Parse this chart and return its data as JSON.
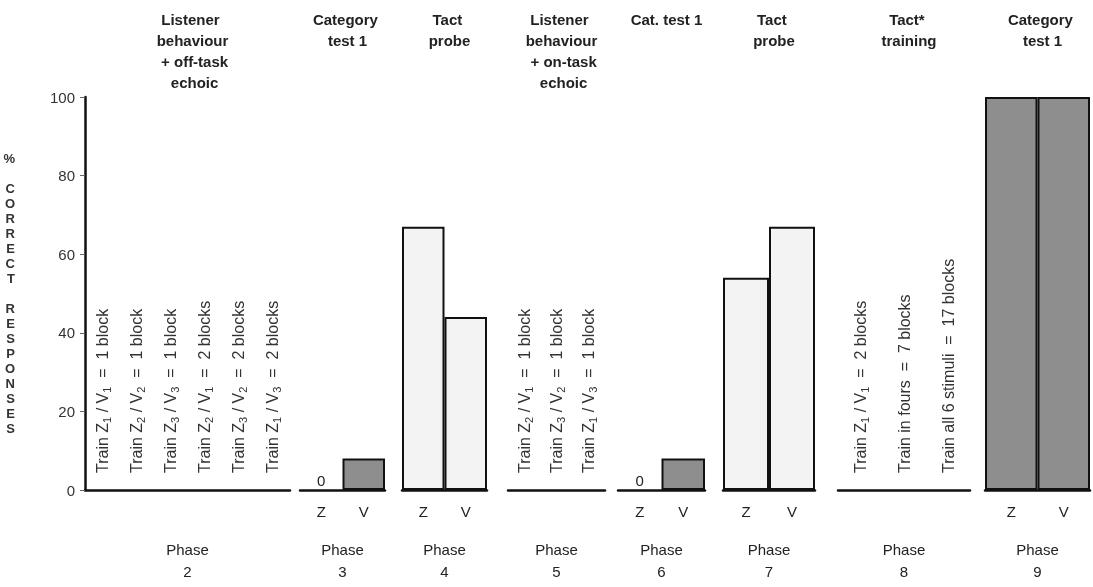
{
  "chart_data": [
    {
      "type": "bar",
      "title": "Listener behaviour + off-task echoic",
      "xlabel": "Phase 2",
      "ylabel": "% CORRECT RESPONSES",
      "ylim": [
        0,
        100
      ],
      "yticks": [
        0,
        20,
        40,
        60,
        80,
        100
      ],
      "tick_labels": "y",
      "categories": [
        null
      ],
      "values": [
        null
      ],
      "annotations": [
        "Train Z$_{1}$ / V$_{1}$  =  1 block",
        "Train Z$_{2}$ / V$_{2}$  =  1 block",
        "Train Z$_{3}$ / V$_{3}$  =  1 block",
        "Train Z$_{2}$ / V$_{1}$  =  2 blocks",
        "Train Z$_{3}$ / V$_{2}$  =  2 blocks",
        "Train Z$_{1}$ / V$_{3}$  =  2 blocks"
      ]
    },
    {
      "type": "bar",
      "title": "Category test 1",
      "xlabel": "Phase 3",
      "ylim": [
        0,
        100
      ],
      "tick_labels": "x",
      "categories": [
        "Z",
        "V"
      ],
      "values": [
        0,
        8
      ],
      "colors": [
        "#8e8e8e",
        "#8e8e8e"
      ],
      "value_labels": [
        "0",
        null
      ]
    },
    {
      "type": "bar",
      "title": "Tact probe",
      "xlabel": "Phase 4",
      "ylim": [
        0,
        100
      ],
      "tick_labels": "x",
      "categories": [
        "Z",
        "V"
      ],
      "values": [
        67,
        44
      ],
      "colors": [
        "#f3f3f3",
        "#f3f3f3"
      ]
    },
    {
      "type": "other",
      "title": "Listener behaviour + on-task echoic",
      "xlabel": "Phase 5",
      "annotations": [
        "Train Z$_{2}$ / V$_{1}$  =  1 block",
        "Train Z$_{3}$ / V$_{2}$  =  1 block",
        "Train Z$_{1}$ / V$_{3}$  =  1 block"
      ]
    },
    {
      "type": "bar",
      "title": "Cat. test 1",
      "xlabel": "Phase 6",
      "ylim": [
        0,
        100
      ],
      "tick_labels": "x",
      "categories": [
        "Z",
        "V"
      ],
      "values": [
        0,
        8
      ],
      "colors": [
        "#8e8e8e",
        "#8e8e8e"
      ],
      "value_labels": [
        "0",
        null
      ]
    },
    {
      "type": "bar",
      "title": "Tact probe",
      "xlabel": "Phase 7",
      "ylim": [
        0,
        100
      ],
      "tick_labels": "x",
      "categories": [
        "Z",
        "V"
      ],
      "values": [
        54,
        67
      ],
      "colors": [
        "#f3f3f3",
        "#f3f3f3"
      ]
    },
    {
      "type": "other",
      "title": "Tact* training",
      "xlabel": "Phase 8",
      "annotations": [
        "Train Z$_{1}$ / V$_{1}$  =  2 blocks",
        "Train in fours  =  7 blocks",
        "Train all 6 stimuli  =  17 blocks"
      ]
    },
    {
      "type": "bar",
      "title": "Category test 1",
      "xlabel": "Phase 9",
      "ylim": [
        0,
        100
      ],
      "tick_labels": "x",
      "categories": [
        "Z",
        "V"
      ],
      "values": [
        100,
        100
      ],
      "colors": [
        "#8e8e8e",
        "#8e8e8e"
      ]
    }
  ]
}
